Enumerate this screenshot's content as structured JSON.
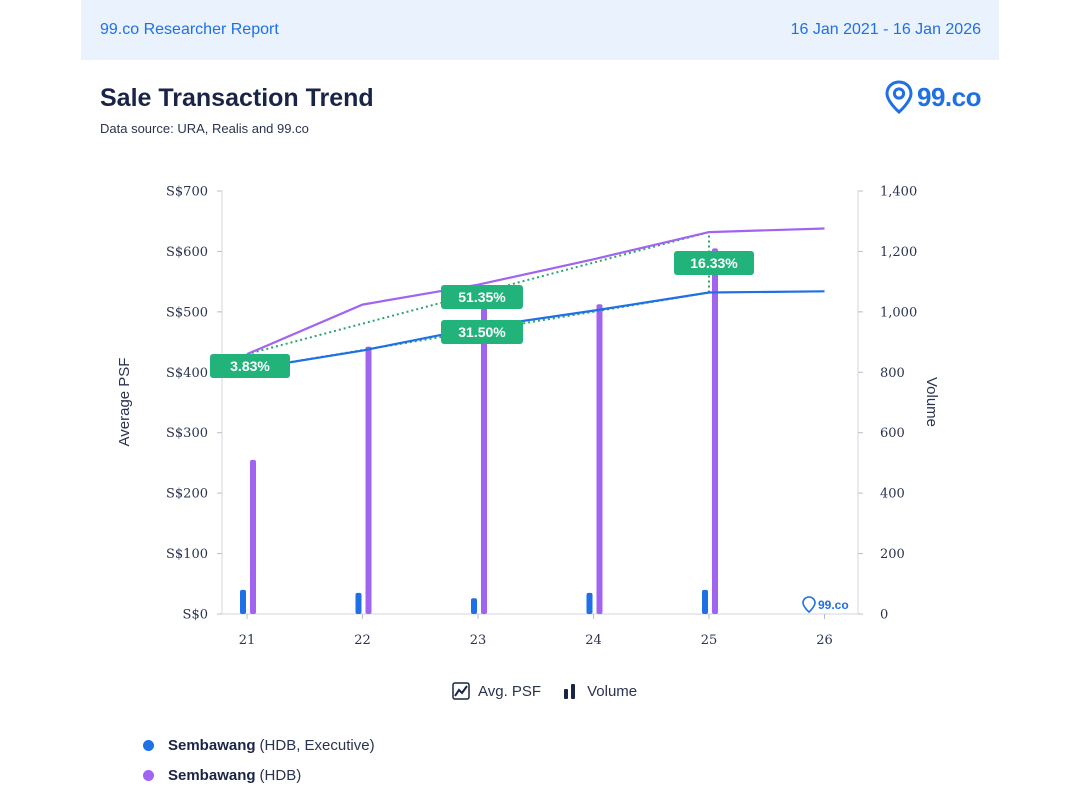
{
  "header": {
    "report_name": "99.co Researcher Report",
    "date_range": "16 Jan 2021 - 16 Jan 2026"
  },
  "title": "Sale Transaction Trend",
  "subtitle": "Data source: URA, Realis and 99.co",
  "logo": {
    "text": "99.co",
    "icon": "location-pin-icon"
  },
  "watermark": {
    "text": "99.co"
  },
  "legend": {
    "line_label": "Avg. PSF",
    "bar_label": "Volume"
  },
  "series_list": [
    {
      "name": "Sembawang",
      "type": "(HDB, Executive)",
      "color": "#1f6fe5"
    },
    {
      "name": "Sembawang",
      "type": "(HDB)",
      "color": "#a064f0"
    }
  ],
  "colors": {
    "executive": "#1f6fe5",
    "hdb": "#a064f0",
    "badge": "#22b37a",
    "dotted": "#2aa56e"
  },
  "chart_data": {
    "type": "line",
    "categories": [
      "21",
      "22",
      "23",
      "24",
      "25",
      "26"
    ],
    "ylabel": "Average PSF",
    "y2label": "Volume",
    "y_ticks": [
      "S$0",
      "S$100",
      "S$200",
      "S$300",
      "S$400",
      "S$500",
      "S$600",
      "S$700"
    ],
    "y2_ticks": [
      "0",
      "200",
      "400",
      "600",
      "800",
      "1,000",
      "1,200",
      "1,400"
    ],
    "ylim": [
      0,
      700
    ],
    "y2lim": [
      0,
      1400
    ],
    "series": [
      {
        "name": "Sembawang (HDB, Executive)",
        "psf": [
          405,
          436,
          474,
          502,
          532,
          534
        ],
        "volume": [
          80,
          70,
          52,
          70,
          80,
          0
        ]
      },
      {
        "name": "Sembawang (HDB)",
        "psf": [
          430,
          512,
          545,
          587,
          632,
          638
        ],
        "volume": [
          510,
          885,
          1015,
          1025,
          1210,
          0
        ]
      }
    ],
    "annotations": [
      {
        "label": "3.83%",
        "from": "21",
        "to": "21"
      },
      {
        "label": "51.35%",
        "from": "21",
        "to": "25"
      },
      {
        "label": "31.50%",
        "from": "21",
        "to": "25"
      },
      {
        "label": "16.33%",
        "from": "25",
        "to": "25"
      }
    ]
  }
}
